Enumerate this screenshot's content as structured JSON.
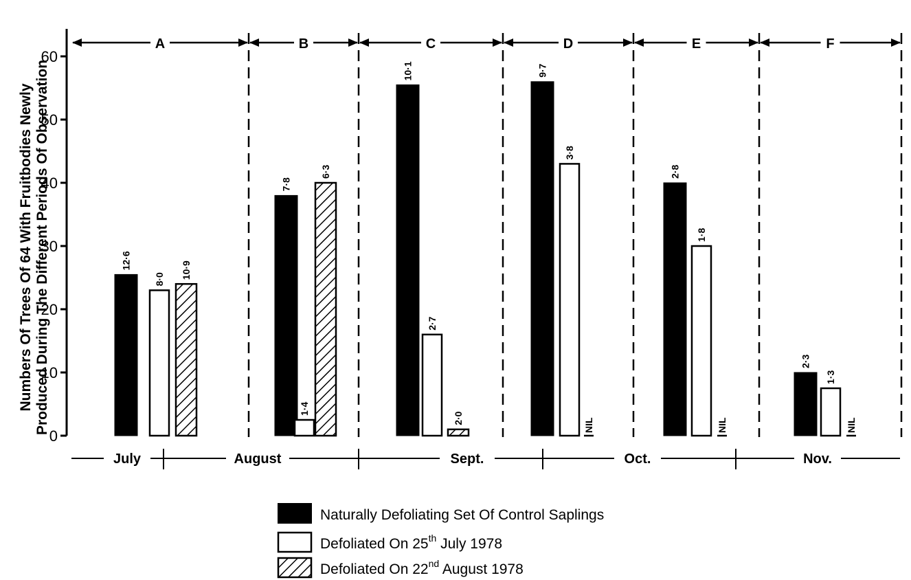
{
  "chart_data": {
    "type": "bar",
    "title": "",
    "ylabel_line1": "Numbers Of Trees Of 64 With Fruitbodies Newly",
    "ylabel_line2": "Produced During The Different Periods Of Observation",
    "ylim": [
      0,
      60
    ],
    "yticks": [
      "0",
      "10",
      "20",
      "30",
      "40",
      "50",
      "60"
    ],
    "grid": false,
    "periods": [
      "A",
      "B",
      "C",
      "D",
      "E",
      "F"
    ],
    "months": [
      "July",
      "August",
      "Sept.",
      "Oct.",
      "Nov."
    ],
    "nil_label": "NIL",
    "series": [
      {
        "name": "Naturally Defoliating Set Of Control Saplings",
        "fill": "#000000",
        "values": [
          25.5,
          38,
          55.5,
          56,
          40,
          10
        ],
        "labels": [
          "12·6",
          "7·8",
          "10·1",
          "9·7",
          "2·8",
          "2·3"
        ]
      },
      {
        "name": "Defoliated On 25th July 1978",
        "fill": "#ffffff",
        "values": [
          23,
          2.5,
          16,
          43,
          30,
          7.5
        ],
        "labels": [
          "8·0",
          "1·4",
          "2·7",
          "3·8",
          "1·8",
          "1·3"
        ]
      },
      {
        "name": "Defoliated On 22nd August 1978",
        "fill": "hatch",
        "values": [
          24,
          40,
          1,
          0,
          0,
          0
        ],
        "labels": [
          "10·9",
          "6·3",
          "2·0",
          "NIL",
          "NIL",
          "NIL"
        ]
      }
    ]
  },
  "legend": {
    "item1": "Naturally Defoliating Set Of Control Saplings",
    "item2_pre": "Defoliated On 25",
    "item2_sup": "th",
    "item2_post": " July 1978",
    "item3_pre": "Defoliated On 22",
    "item3_sup": "nd",
    "item3_post": " August 1978"
  }
}
